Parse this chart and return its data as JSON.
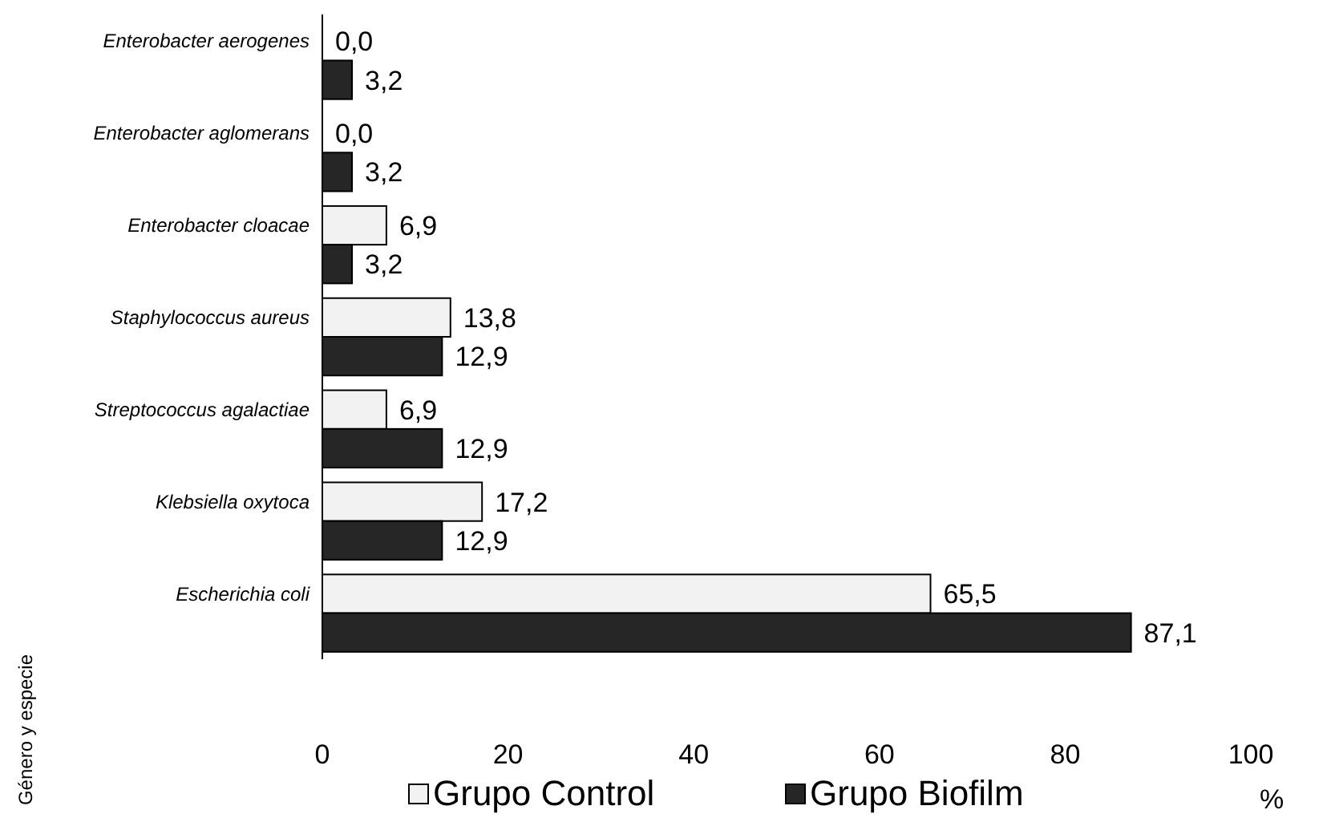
{
  "chart_data": {
    "type": "bar",
    "orientation": "horizontal",
    "categories": [
      "Enterobacter aerogenes",
      "Enterobacter aglomerans",
      "Enterobacter cloacae",
      "Staphylococcus aureus",
      "Streptococcus agalactiae",
      "Klebsiella oxytoca",
      "Escherichia coli"
    ],
    "series": [
      {
        "name": "Grupo Control",
        "color": "#f2f2f2",
        "values": [
          0,
          0,
          6.9,
          13.8,
          6.9,
          17.2,
          65.5
        ],
        "value_labels": [
          "0,0",
          "0,0",
          "6,9",
          "13,8",
          "6,9",
          "17,2",
          "65,5"
        ]
      },
      {
        "name": "Grupo Biofilm",
        "color": "#262626",
        "values": [
          3.2,
          3.2,
          3.2,
          12.9,
          12.9,
          12.9,
          87.1
        ],
        "value_labels": [
          "3,2",
          "3,2",
          "3,2",
          "12,9",
          "12,9",
          "12,9",
          "87,1"
        ]
      }
    ],
    "xlim": [
      0,
      100
    ],
    "xticks": [
      0,
      20,
      40,
      60,
      80,
      100
    ],
    "xlabel": "%",
    "ylabel": "Género y especie",
    "legend": "bottom",
    "grid": false
  }
}
